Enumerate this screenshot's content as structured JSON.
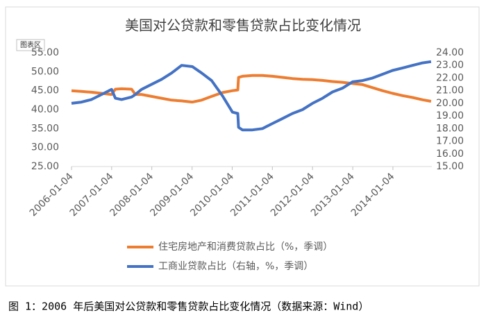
{
  "chart_data": {
    "type": "line",
    "title": "美国对公贷款和零售贷款占比变化情况",
    "chart_area_label": "图表区",
    "caption": "图 1：2006 年后美国对公贷款和零售贷款占比变化情况（数据来源：Wind）",
    "x": [
      "2006-01-04",
      "2006-04-05",
      "2006-07-05",
      "2006-10-04",
      "2007-01-03",
      "2007-02-07",
      "2007-04-04",
      "2007-07-04",
      "2007-08-08",
      "2007-10-03",
      "2008-01-02",
      "2008-04-02",
      "2008-07-02",
      "2008-10-01",
      "2009-01-07",
      "2009-04-01",
      "2009-07-01",
      "2009-10-07",
      "2010-01-06",
      "2010-02-24",
      "2010-03-03",
      "2010-04-07",
      "2010-07-07",
      "2010-10-06",
      "2011-01-05",
      "2011-04-06",
      "2011-07-06",
      "2011-10-05",
      "2012-01-04",
      "2012-04-04",
      "2012-07-04",
      "2012-10-03",
      "2013-01-02",
      "2013-04-03",
      "2013-07-03",
      "2013-10-02",
      "2014-01-01",
      "2014-04-02",
      "2014-07-02",
      "2014-10-01",
      "2014-12-17"
    ],
    "series": [
      {
        "name": "住宅房地产和消费贷款占比（%，季调）",
        "color": "#ed7d31",
        "axis": "y",
        "values": [
          45.0,
          44.8,
          44.6,
          44.3,
          44.0,
          45.4,
          45.5,
          45.4,
          44.0,
          44.0,
          43.5,
          43.0,
          42.5,
          42.3,
          42.0,
          42.5,
          43.5,
          44.5,
          45.0,
          45.2,
          48.5,
          48.8,
          49.0,
          49.0,
          48.8,
          48.5,
          48.2,
          48.0,
          47.9,
          47.7,
          47.4,
          47.2,
          46.9,
          46.6,
          45.8,
          45.0,
          44.3,
          43.7,
          43.2,
          42.6,
          42.2
        ]
      },
      {
        "name": "工商业贷款占比（右轴，%，季调）",
        "color": "#4472c4",
        "axis": "y2",
        "values": [
          20.0,
          20.1,
          20.3,
          20.7,
          21.1,
          20.4,
          20.3,
          20.5,
          20.7,
          21.1,
          21.5,
          21.9,
          22.4,
          23.0,
          22.9,
          22.4,
          21.8,
          20.6,
          19.3,
          19.2,
          18.1,
          17.9,
          17.9,
          18.0,
          18.4,
          18.8,
          19.2,
          19.5,
          20.0,
          20.4,
          20.9,
          21.2,
          21.7,
          21.8,
          22.0,
          22.3,
          22.6,
          22.8,
          23.0,
          23.2,
          23.3
        ]
      }
    ],
    "xlim": [
      "2006-01-04",
      "2014-12-24"
    ],
    "xticks": [
      "2006-01-04",
      "2007-01-04",
      "2008-01-04",
      "2009-01-04",
      "2010-01-04",
      "2011-01-04",
      "2012-01-04",
      "2013-01-04",
      "2014-01-04"
    ],
    "ylim": [
      25,
      55
    ],
    "yticks": [
      {
        "value": 25,
        "label": "25.00"
      },
      {
        "value": 30,
        "label": "30.00"
      },
      {
        "value": 35,
        "label": "35.00"
      },
      {
        "value": 40,
        "label": "40.00"
      },
      {
        "value": 45,
        "label": "45.00"
      },
      {
        "value": 50,
        "label": "50.00"
      },
      {
        "value": 55,
        "label": "55.00"
      }
    ],
    "y2lim": [
      15,
      24
    ],
    "y2ticks": [
      {
        "value": 15,
        "label": "15.00"
      },
      {
        "value": 16,
        "label": "16.00"
      },
      {
        "value": 17,
        "label": "17.00"
      },
      {
        "value": 18,
        "label": "18.00"
      },
      {
        "value": 19,
        "label": "19.00"
      },
      {
        "value": 20,
        "label": "20.00"
      },
      {
        "value": 21,
        "label": "21.00"
      },
      {
        "value": 22,
        "label": "22.00"
      },
      {
        "value": 23,
        "label": "23.00"
      },
      {
        "value": 24,
        "label": "24.00"
      }
    ],
    "grid": false
  }
}
